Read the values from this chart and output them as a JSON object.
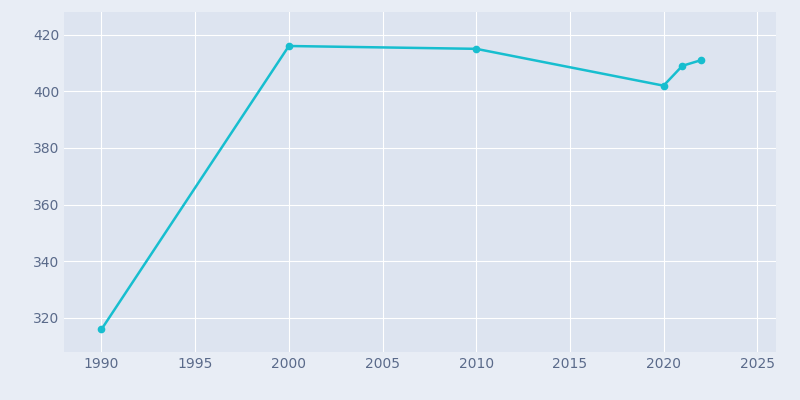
{
  "years": [
    1990,
    2000,
    2010,
    2020,
    2021,
    2022
  ],
  "population": [
    316,
    416,
    415,
    402,
    409,
    411
  ],
  "line_color": "#17becf",
  "marker_color": "#17becf",
  "bg_color": "#e8edf5",
  "plot_bg_color": "#dde4f0",
  "xlim": [
    1988,
    2026
  ],
  "ylim": [
    308,
    428
  ],
  "xticks": [
    1990,
    1995,
    2000,
    2005,
    2010,
    2015,
    2020,
    2025
  ],
  "yticks": [
    320,
    340,
    360,
    380,
    400,
    420
  ],
  "tick_label_color": "#5a6a8a",
  "grid_color": "#ffffff",
  "linewidth": 1.8,
  "markersize": 4.5
}
